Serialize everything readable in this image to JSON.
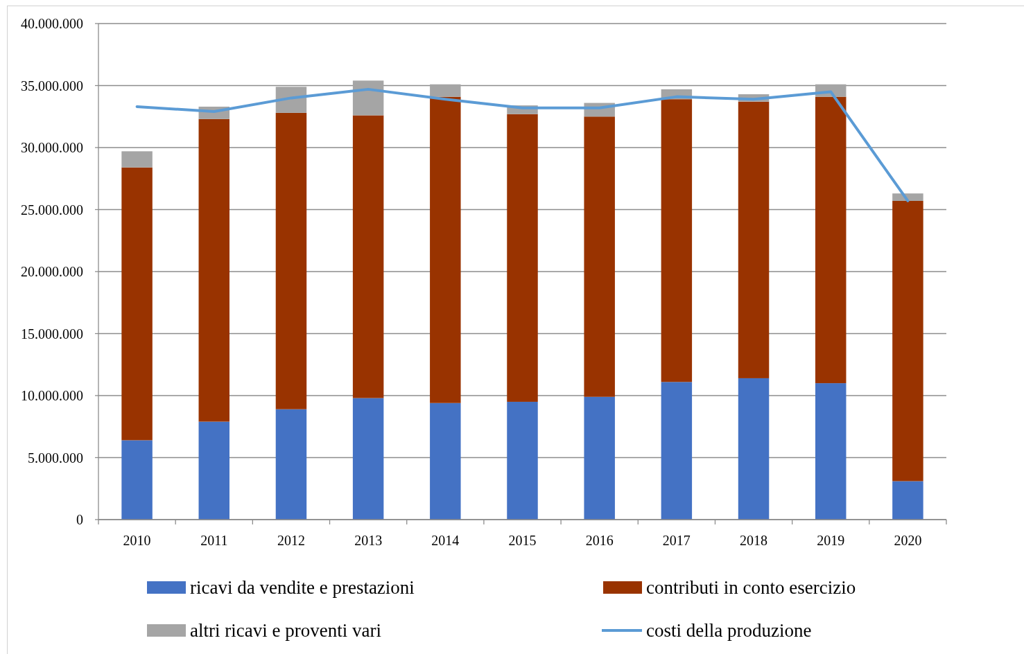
{
  "chart_data": {
    "type": "bar",
    "stacked": true,
    "categories": [
      "2010",
      "2011",
      "2012",
      "2013",
      "2014",
      "2015",
      "2016",
      "2017",
      "2018",
      "2019",
      "2020"
    ],
    "series": [
      {
        "name": "ricavi da vendite e prestazioni",
        "color": "#4472c4",
        "values": [
          6400000,
          7900000,
          8900000,
          9800000,
          9400000,
          9500000,
          9900000,
          11100000,
          11400000,
          11000000,
          3100000
        ]
      },
      {
        "name": "contributi in conto esercizio",
        "color": "#993300",
        "values": [
          22000000,
          24400000,
          23900000,
          22800000,
          24700000,
          23200000,
          22600000,
          22800000,
          22300000,
          23100000,
          22600000
        ]
      },
      {
        "name": "altri ricavi e proventi vari",
        "color": "#a5a5a5",
        "values": [
          1300000,
          1000000,
          2100000,
          2800000,
          1000000,
          700000,
          1100000,
          800000,
          600000,
          1000000,
          600000
        ]
      },
      {
        "name": "costi della produzione",
        "type": "line",
        "color": "#5b9bd5",
        "values": [
          33300000,
          32900000,
          34000000,
          34700000,
          33900000,
          33200000,
          33200000,
          34100000,
          33900000,
          34500000,
          25700000
        ]
      }
    ],
    "ylim": [
      0,
      40000000
    ],
    "yticks": [
      0,
      {
        "value": 5000000,
        "label": "5.000.000"
      },
      {
        "value": 10000000,
        "label": "10.000.000"
      },
      {
        "value": 15000000,
        "label": "15.000.000"
      },
      {
        "value": 20000000,
        "label": "20.000.000"
      },
      {
        "value": 25000000,
        "label": "25.000.000"
      },
      {
        "value": 30000000,
        "label": "30.000.000"
      },
      {
        "value": 35000000,
        "label": "35.000.000"
      },
      {
        "value": 40000000,
        "label": "40.000.000"
      }
    ],
    "grid": "y",
    "legend": "bottom",
    "line_style": "solid"
  }
}
